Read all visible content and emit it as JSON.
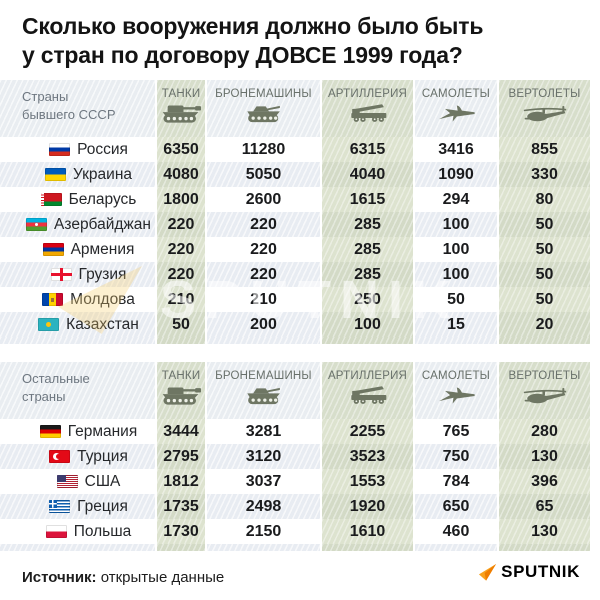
{
  "title": {
    "line1": "Сколько вооружения должно было быть",
    "line2": "у стран по договору ДОВСЕ 1999 года?"
  },
  "columns": [
    {
      "label": "ТАНКИ",
      "icon": "tank-icon"
    },
    {
      "label": "БРОНЕМАШИНЫ",
      "icon": "apc-icon"
    },
    {
      "label": "АРТИЛЛЕРИЯ",
      "icon": "artillery-icon"
    },
    {
      "label": "САМОЛЕТЫ",
      "icon": "jet-icon"
    },
    {
      "label": "ВЕРТОЛЕТЫ",
      "icon": "helicopter-icon"
    }
  ],
  "sections": [
    {
      "label_line1": "Страны",
      "label_line2": "бывшего СССР",
      "rows": [
        {
          "country": "Россия",
          "flag": "ru",
          "values": [
            "6350",
            "11280",
            "6315",
            "3416",
            "855"
          ]
        },
        {
          "country": "Украина",
          "flag": "ua",
          "values": [
            "4080",
            "5050",
            "4040",
            "1090",
            "330"
          ]
        },
        {
          "country": "Беларусь",
          "flag": "by",
          "values": [
            "1800",
            "2600",
            "1615",
            "294",
            "80"
          ]
        },
        {
          "country": "Азербайджан",
          "flag": "az",
          "values": [
            "220",
            "220",
            "285",
            "100",
            "50"
          ]
        },
        {
          "country": "Армения",
          "flag": "am",
          "values": [
            "220",
            "220",
            "285",
            "100",
            "50"
          ]
        },
        {
          "country": "Грузия",
          "flag": "ge",
          "values": [
            "220",
            "220",
            "285",
            "100",
            "50"
          ]
        },
        {
          "country": "Молдова",
          "flag": "md",
          "values": [
            "210",
            "210",
            "250",
            "50",
            "50"
          ]
        },
        {
          "country": "Казахстан",
          "flag": "kz",
          "values": [
            "50",
            "200",
            "100",
            "15",
            "20"
          ]
        }
      ]
    },
    {
      "label_line1": "Остальные",
      "label_line2": "страны",
      "rows": [
        {
          "country": "Германия",
          "flag": "de",
          "values": [
            "3444",
            "3281",
            "2255",
            "765",
            "280"
          ]
        },
        {
          "country": "Турция",
          "flag": "tr",
          "values": [
            "2795",
            "3120",
            "3523",
            "750",
            "130"
          ]
        },
        {
          "country": "США",
          "flag": "us",
          "values": [
            "1812",
            "3037",
            "1553",
            "784",
            "396"
          ]
        },
        {
          "country": "Греция",
          "flag": "gr",
          "values": [
            "1735",
            "2498",
            "1920",
            "650",
            "65"
          ]
        },
        {
          "country": "Польша",
          "flag": "pl",
          "values": [
            "1730",
            "2150",
            "1610",
            "460",
            "130"
          ]
        }
      ]
    }
  ],
  "watermark": "SPUTNIK",
  "footer": {
    "source_label": "Источник:",
    "source_value": "открытые данные",
    "logo_text": "SPUTNIK"
  },
  "colors": {
    "band_green": "#dde3cf",
    "row_alt": "#e8ecf2",
    "icon_sage": "#6e7663",
    "accent_orange": "#f7941d"
  },
  "chart_data": {
    "type": "table",
    "title": "Сколько вооружения должно было быть у стран по договору ДОВСЕ 1999 года?",
    "columns": [
      "ТАНКИ",
      "БРОНЕМАШИНЫ",
      "АРТИЛЛЕРИЯ",
      "САМОЛЕТЫ",
      "ВЕРТОЛЕТЫ"
    ],
    "groups": [
      {
        "name": "Страны бывшего СССР",
        "rows": [
          [
            "Россия",
            6350,
            11280,
            6315,
            3416,
            855
          ],
          [
            "Украина",
            4080,
            5050,
            4040,
            1090,
            330
          ],
          [
            "Беларусь",
            1800,
            2600,
            1615,
            294,
            80
          ],
          [
            "Азербайджан",
            220,
            220,
            285,
            100,
            50
          ],
          [
            "Армения",
            220,
            220,
            285,
            100,
            50
          ],
          [
            "Грузия",
            220,
            220,
            285,
            100,
            50
          ],
          [
            "Молдова",
            210,
            210,
            250,
            50,
            50
          ],
          [
            "Казахстан",
            50,
            200,
            100,
            15,
            20
          ]
        ]
      },
      {
        "name": "Остальные страны",
        "rows": [
          [
            "Германия",
            3444,
            3281,
            2255,
            765,
            280
          ],
          [
            "Турция",
            2795,
            3120,
            3523,
            750,
            130
          ],
          [
            "США",
            1812,
            3037,
            1553,
            784,
            396
          ],
          [
            "Греция",
            1735,
            2498,
            1920,
            650,
            65
          ],
          [
            "Польша",
            1730,
            2150,
            1610,
            460,
            130
          ]
        ]
      }
    ],
    "source": "открытые данные"
  }
}
